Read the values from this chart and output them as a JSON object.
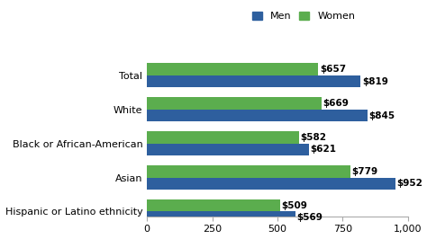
{
  "categories": [
    "Total",
    "White",
    "Black or African-American",
    "Asian",
    "Hispanic or Latino ethnicity"
  ],
  "men_values": [
    819,
    845,
    621,
    952,
    569
  ],
  "women_values": [
    657,
    669,
    582,
    779,
    509
  ],
  "men_color": "#2E5F9E",
  "women_color": "#5BAD4E",
  "xlim": [
    0,
    1000
  ],
  "xticks": [
    0,
    250,
    500,
    750,
    1000
  ],
  "xtick_labels": [
    "0",
    "250",
    "500",
    "750",
    "1,000"
  ],
  "bar_height": 0.36,
  "legend_labels": [
    "Men",
    "Women"
  ],
  "background_color": "#ffffff",
  "label_fontsize": 8,
  "tick_fontsize": 8,
  "annotation_fontsize": 7.5
}
